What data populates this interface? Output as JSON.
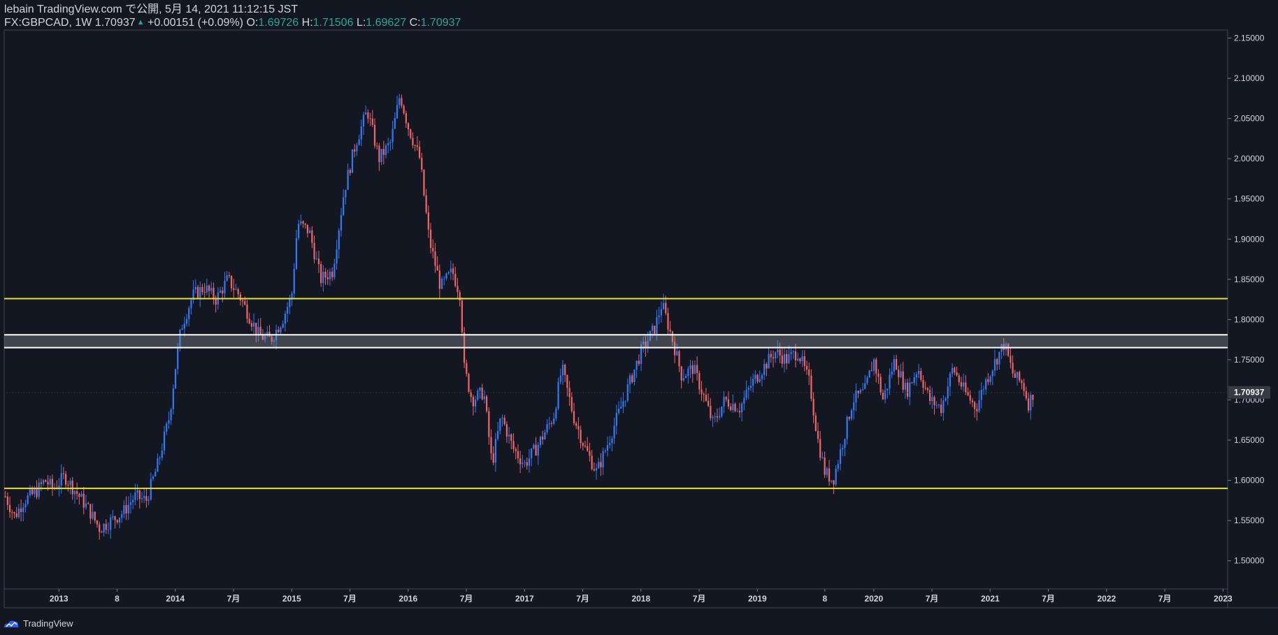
{
  "header": {
    "line1": "lebain TradingView.com で公開, 5月 14, 2021 11:12:15 JST",
    "symbol": "FX:GBPCAD, 1W",
    "last": "1.70937",
    "change": "+0.00151 (+0.09%)",
    "o_label": "O:",
    "o_value": "1.69726",
    "h_label": "H:",
    "h_value": "1.71506",
    "l_label": "L:",
    "l_value": "1.69627",
    "c_label": "C:",
    "c_value": "1.70937"
  },
  "footer": {
    "brand": "TradingView"
  },
  "colors": {
    "background": "#131722",
    "up": "#3179f5",
    "down": "#f06464",
    "yellow_line": "#e6de3a",
    "white_zone": "#ffffff",
    "price_label_bg": "#363a45"
  },
  "chart_data": {
    "type": "candlestick",
    "symbol": "FX:GBPCAD",
    "interval": "1W",
    "ylim": [
      1.465,
      2.16
    ],
    "y_ticks": [
      "1.50000",
      "1.55000",
      "1.60000",
      "1.65000",
      "1.70000",
      "1.75000",
      "1.80000",
      "1.85000",
      "1.90000",
      "1.95000",
      "2.00000",
      "2.05000",
      "2.10000",
      "2.15000"
    ],
    "y_tick_values": [
      1.5,
      1.55,
      1.6,
      1.65,
      1.7,
      1.75,
      1.8,
      1.85,
      1.9,
      1.95,
      2.0,
      2.05,
      2.1,
      2.15
    ],
    "x_ticks": [
      "2013",
      "8",
      "2014",
      "7月",
      "2015",
      "7月",
      "2016",
      "7月",
      "2017",
      "7月",
      "2018",
      "7月",
      "2019",
      "8",
      "2020",
      "7月",
      "2021",
      "7月",
      "2022",
      "7月",
      "2023"
    ],
    "x_tick_dates": [
      2013.0,
      2013.5,
      2014.0,
      2014.5,
      2015.0,
      2015.5,
      2016.0,
      2016.5,
      2017.0,
      2017.5,
      2018.0,
      2018.5,
      2019.0,
      2019.58,
      2020.0,
      2020.5,
      2021.0,
      2021.5,
      2022.0,
      2022.5,
      2023.0
    ],
    "xlim": [
      2012.53,
      2023.04
    ],
    "current_price": "1.70937",
    "current_price_value": 1.70937,
    "horizontal_lines": [
      {
        "value": 1.826,
        "color": "yellow"
      },
      {
        "value": 1.59,
        "color": "yellow"
      }
    ],
    "zone": {
      "top": 1.781,
      "bottom": 1.765
    },
    "close_path": [
      [
        2012.54,
        1.58
      ],
      [
        2012.62,
        1.555
      ],
      [
        2012.7,
        1.575
      ],
      [
        2012.8,
        1.585
      ],
      [
        2012.88,
        1.6
      ],
      [
        2012.95,
        1.59
      ],
      [
        2013.05,
        1.605
      ],
      [
        2013.15,
        1.585
      ],
      [
        2013.25,
        1.565
      ],
      [
        2013.35,
        1.54
      ],
      [
        2013.45,
        1.55
      ],
      [
        2013.55,
        1.56
      ],
      [
        2013.65,
        1.58
      ],
      [
        2013.75,
        1.575
      ],
      [
        2013.85,
        1.62
      ],
      [
        2013.95,
        1.68
      ],
      [
        2014.0,
        1.74
      ],
      [
        2014.05,
        1.79
      ],
      [
        2014.15,
        1.83
      ],
      [
        2014.25,
        1.84
      ],
      [
        2014.35,
        1.825
      ],
      [
        2014.45,
        1.85
      ],
      [
        2014.55,
        1.83
      ],
      [
        2014.65,
        1.8
      ],
      [
        2014.72,
        1.78
      ],
      [
        2014.82,
        1.775
      ],
      [
        2014.92,
        1.8
      ],
      [
        2015.0,
        1.83
      ],
      [
        2015.05,
        1.92
      ],
      [
        2015.15,
        1.91
      ],
      [
        2015.25,
        1.85
      ],
      [
        2015.35,
        1.86
      ],
      [
        2015.45,
        1.96
      ],
      [
        2015.55,
        2.02
      ],
      [
        2015.65,
        2.06
      ],
      [
        2015.75,
        2.0
      ],
      [
        2015.85,
        2.02
      ],
      [
        2015.93,
        2.08
      ],
      [
        2016.0,
        2.04
      ],
      [
        2016.1,
        2.0
      ],
      [
        2016.18,
        1.9
      ],
      [
        2016.28,
        1.84
      ],
      [
        2016.38,
        1.86
      ],
      [
        2016.45,
        1.83
      ],
      [
        2016.48,
        1.74
      ],
      [
        2016.55,
        1.7
      ],
      [
        2016.65,
        1.71
      ],
      [
        2016.72,
        1.62
      ],
      [
        2016.8,
        1.68
      ],
      [
        2016.9,
        1.64
      ],
      [
        2017.0,
        1.62
      ],
      [
        2017.1,
        1.64
      ],
      [
        2017.25,
        1.68
      ],
      [
        2017.32,
        1.74
      ],
      [
        2017.42,
        1.68
      ],
      [
        2017.52,
        1.64
      ],
      [
        2017.62,
        1.61
      ],
      [
        2017.7,
        1.64
      ],
      [
        2017.8,
        1.68
      ],
      [
        2017.95,
        1.74
      ],
      [
        2018.0,
        1.76
      ],
      [
        2018.12,
        1.79
      ],
      [
        2018.18,
        1.82
      ],
      [
        2018.28,
        1.77
      ],
      [
        2018.35,
        1.73
      ],
      [
        2018.45,
        1.74
      ],
      [
        2018.55,
        1.7
      ],
      [
        2018.62,
        1.67
      ],
      [
        2018.72,
        1.7
      ],
      [
        2018.85,
        1.69
      ],
      [
        2018.95,
        1.72
      ],
      [
        2019.05,
        1.74
      ],
      [
        2019.15,
        1.76
      ],
      [
        2019.25,
        1.75
      ],
      [
        2019.35,
        1.76
      ],
      [
        2019.45,
        1.72
      ],
      [
        2019.52,
        1.65
      ],
      [
        2019.58,
        1.61
      ],
      [
        2019.65,
        1.6
      ],
      [
        2019.72,
        1.64
      ],
      [
        2019.82,
        1.7
      ],
      [
        2019.92,
        1.71
      ],
      [
        2020.0,
        1.75
      ],
      [
        2020.08,
        1.7
      ],
      [
        2020.18,
        1.75
      ],
      [
        2020.28,
        1.71
      ],
      [
        2020.38,
        1.74
      ],
      [
        2020.48,
        1.7
      ],
      [
        2020.58,
        1.69
      ],
      [
        2020.68,
        1.74
      ],
      [
        2020.78,
        1.71
      ],
      [
        2020.88,
        1.69
      ],
      [
        2020.95,
        1.72
      ],
      [
        2021.05,
        1.75
      ],
      [
        2021.12,
        1.77
      ],
      [
        2021.2,
        1.73
      ],
      [
        2021.28,
        1.72
      ],
      [
        2021.33,
        1.695
      ],
      [
        2021.37,
        1.709
      ]
    ]
  }
}
